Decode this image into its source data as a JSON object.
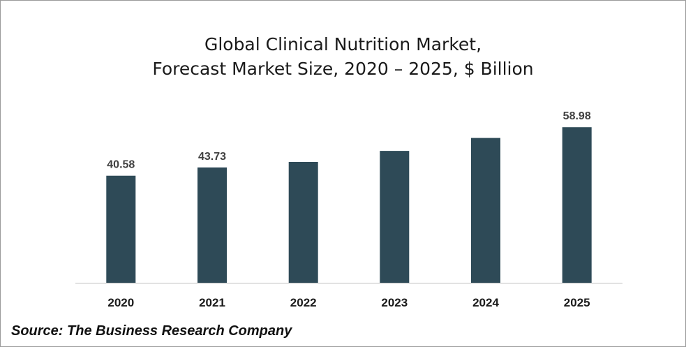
{
  "chart_data": {
    "type": "bar",
    "title_lines": [
      "Global Clinical Nutrition Market,",
      "Forecast Market Size, 2020 – 2025, $ Billion"
    ],
    "categories": [
      "2020",
      "2021",
      "2022",
      "2023",
      "2024",
      "2025"
    ],
    "values": [
      40.58,
      43.73,
      45.8,
      50.0,
      54.9,
      58.98
    ],
    "data_labels": [
      "40.58",
      "43.73",
      "",
      "",
      "",
      "58.98"
    ],
    "xlabel": "",
    "ylabel": "",
    "ylim": [
      0,
      67.5
    ],
    "grid": false,
    "bar_color": "#2e4a57",
    "axis_color": "#bfbfbf"
  },
  "source": "Source: The Business Research Company"
}
